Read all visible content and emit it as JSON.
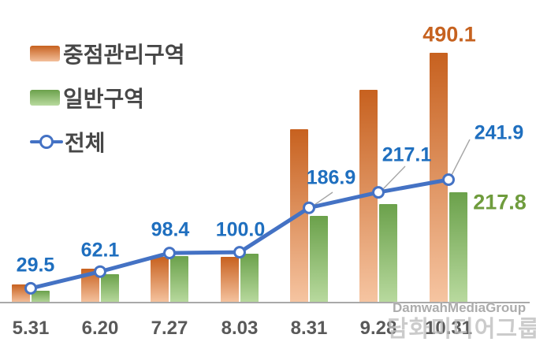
{
  "legend": {
    "items": [
      {
        "label": "중점관리구역",
        "swatch": "orange-gradient-bar"
      },
      {
        "label": "일반구역",
        "swatch": "green-gradient-bar"
      },
      {
        "label": "전체",
        "swatch": "blue-line-with-marker"
      }
    ]
  },
  "chart_data": {
    "type": "combo",
    "categories": [
      "5.31",
      "6.20",
      "7.27",
      "8.03",
      "8.31",
      "9.28",
      "10.31"
    ],
    "series": [
      {
        "name": "중점관리구역",
        "chart_type": "bar",
        "values": [
          37,
          68,
          91,
          91,
          340,
          417,
          490.1
        ],
        "unlabeled_values_estimated": true,
        "visible_data_label": {
          "category": "10.31",
          "text": "490.1"
        },
        "color_top": "#C7611F",
        "color_bottom": "#F6C5A2"
      },
      {
        "name": "일반구역",
        "chart_type": "bar",
        "values": [
          25,
          57,
          92,
          97,
          171,
          194,
          217.8
        ],
        "unlabeled_values_estimated": true,
        "visible_data_label": {
          "category": "10.31",
          "text": "217.8"
        },
        "color_top": "#6BA14B",
        "color_bottom": "#B9DA9F"
      },
      {
        "name": "전체",
        "chart_type": "line",
        "values": [
          29.5,
          62.1,
          98.4,
          100.0,
          186.9,
          217.1,
          241.9
        ],
        "data_labels": [
          "29.5",
          "62.1",
          "98.4",
          "100.0",
          "186.9",
          "217.1",
          "241.9"
        ],
        "color": "#4472C4",
        "marker": "open-circle"
      }
    ],
    "y_axis_visible": false,
    "gridlines": false,
    "legend_position": "top-left",
    "baseline_axis_color": "#A9A9A9"
  },
  "bar_value_labels": {
    "focus": "490.1",
    "general": "217.8"
  },
  "watermark": {
    "line1": "DamwahMediaGroup",
    "line2": "담화미디어그룹"
  },
  "colors": {
    "line_blue": "#4472C4",
    "label_blue": "#1F6FBF",
    "label_orange": "#C6621F",
    "label_green": "#6F9C3D",
    "axis_gray": "#A9A9A9",
    "legend_text": "#474747",
    "x_label_text": "#595959",
    "watermark_gray": "#9E9E9E",
    "watermark_light_gray": "#BDBDBD"
  }
}
